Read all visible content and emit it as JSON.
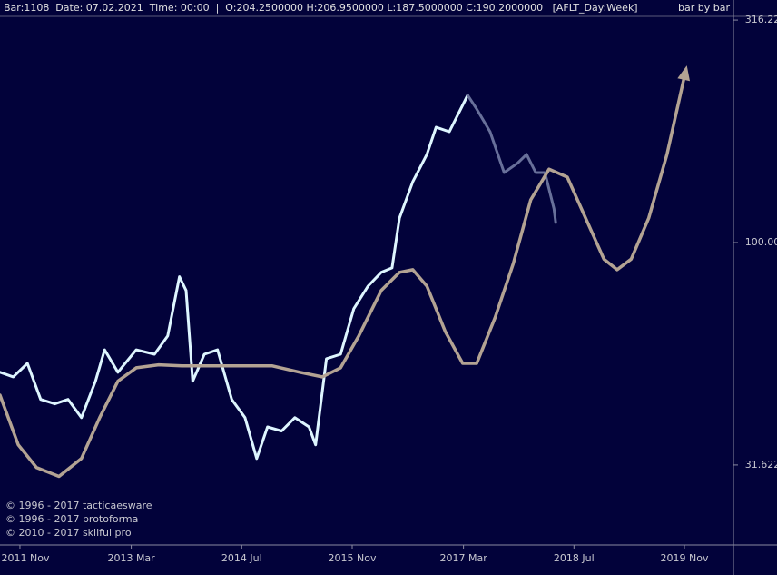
{
  "chart_data": {
    "type": "line",
    "header": "Bar:1108  Date: 07.02.2021  Time: 00:00  |  O:204.2500000 H:206.9500000 L:187.5000000 C:190.2000000   [AFLT_Day:Week]",
    "mode": "bar by bar",
    "credits": [
      "© 1996 - 2017 tacticaesware",
      "© 1996 - 2017 protoforma",
      "© 2010 - 2017 skilful pro"
    ],
    "log_scale": true,
    "xlim": [
      2011.59,
      2020.42
    ],
    "ylim": [
      20.9,
      350.8
    ],
    "xticks": [
      {
        "value": 2011.83,
        "label": "2011 Nov"
      },
      {
        "value": 2013.17,
        "label": "2013 Mar"
      },
      {
        "value": 2014.5,
        "label": "2014 Jul"
      },
      {
        "value": 2015.83,
        "label": "2015 Nov"
      },
      {
        "value": 2017.17,
        "label": "2017 Mar"
      },
      {
        "value": 2018.5,
        "label": "2018 Jul"
      },
      {
        "value": 2019.83,
        "label": "2019 Nov"
      }
    ],
    "yticks": [
      31.622,
      {
        "value": 100,
        "label": "100.00"
      },
      316.22
    ],
    "series": [
      {
        "color": "#def6ff",
        "x": [
          2011.59,
          2011.75,
          2011.92,
          2012.08,
          2012.25,
          2012.41,
          2012.57,
          2012.74,
          2012.85,
          2013.01,
          2013.23,
          2013.45,
          2013.61,
          2013.75,
          2013.83,
          2013.91,
          2014.05,
          2014.21,
          2014.38,
          2014.54,
          2014.68,
          2014.81,
          2014.98,
          2015.14,
          2015.31,
          2015.39,
          2015.52,
          2015.69,
          2015.85,
          2016.02,
          2016.18,
          2016.31,
          2016.4,
          2016.56,
          2016.73,
          2016.84,
          2017.0,
          2017.11,
          2017.22
        ],
        "values": [
          51.1,
          49.9,
          53.5,
          44.4,
          43.4,
          44.4,
          40.4,
          48.8,
          57.4,
          51.1,
          57.4,
          56.1,
          61.7,
          83.8,
          78.0,
          48.8,
          56.1,
          57.4,
          44.4,
          40.4,
          32.7,
          38.5,
          37.7,
          40.4,
          38.5,
          35.1,
          54.8,
          56.1,
          71.0,
          79.8,
          85.7,
          87.7,
          113.5,
          137.1,
          157.8,
          181.6,
          177.4,
          195.0,
          214.3
        ]
      },
      {
        "color": "#68709a",
        "x": [
          2017.22,
          2017.33,
          2017.49,
          2017.66,
          2017.82,
          2017.93,
          2018.04,
          2018.15,
          2018.26,
          2018.28
        ],
        "values": [
          214.3,
          199.5,
          177.4,
          143.6,
          150.7,
          157.8,
          143.6,
          143.6,
          119.1,
          110.9
        ]
      },
      {
        "color": "#b3a393",
        "x": [
          2011.59,
          2011.81,
          2012.03,
          2012.3,
          2012.57,
          2012.79,
          2013.01,
          2013.23,
          2013.5,
          2013.78,
          2014.32,
          2014.87,
          2015.2,
          2015.47,
          2015.69,
          2015.91,
          2016.18,
          2016.4,
          2016.56,
          2016.73,
          2016.95,
          2017.16,
          2017.33,
          2017.55,
          2017.77,
          2017.98,
          2018.2,
          2018.42,
          2018.64,
          2018.86,
          2019.02,
          2019.19,
          2019.4,
          2019.62,
          2019.84
        ],
        "values": [
          45.4,
          35.1,
          31.2,
          29.8,
          32.7,
          40.4,
          48.8,
          52.3,
          53.1,
          52.8,
          52.8,
          52.8,
          51.1,
          49.9,
          52.3,
          61.7,
          78.0,
          85.7,
          86.9,
          79.8,
          63.1,
          53.5,
          53.5,
          67.8,
          89.7,
          124.7,
          146.2,
          140.3,
          113.5,
          91.8,
          86.9,
          91.8,
          113.5,
          157.8,
          240.9
        ]
      }
    ]
  }
}
